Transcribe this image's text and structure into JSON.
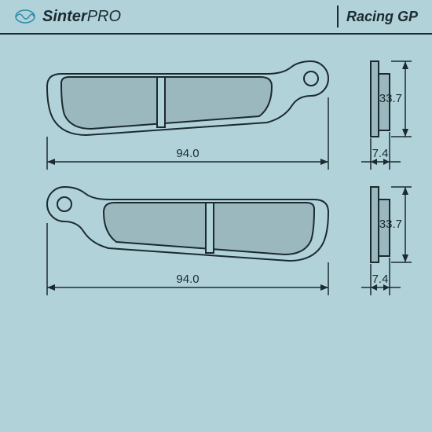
{
  "header": {
    "brand_prefix": "Sinter",
    "brand_suffix": "PRO",
    "category": "Racing GP",
    "bg_color": "#b2d2da",
    "text_color": "#1b2a30",
    "rule_color": "#1b2a30",
    "icon_color": "#2a8aa8"
  },
  "drawing": {
    "bg_color": "#b2d2da",
    "stroke": "#1b2a30",
    "pad_fill": "#9bb8bf",
    "profile_fill": "#9bb8bf",
    "dim_text_color": "#1b2a30",
    "top": {
      "width_label": "94.0",
      "height_label": "33.7",
      "thickness_label": "7.4"
    },
    "bottom": {
      "width_label": "94.0",
      "height_label": "33.7",
      "thickness_label": "7.4"
    },
    "stroke_w": 2,
    "dim_stroke_w": 1.5,
    "font_size": 15
  }
}
